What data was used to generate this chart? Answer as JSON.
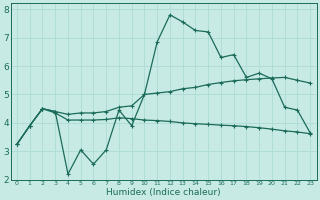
{
  "bg_color": "#c8eae5",
  "line_color": "#1a6b5a",
  "grid_color": "#b0ddd8",
  "xlabel": "Humidex (Indice chaleur)",
  "xlim": [
    -0.5,
    23.5
  ],
  "ylim": [
    2,
    8.2
  ],
  "yticks": [
    2,
    3,
    4,
    5,
    6,
    7,
    8
  ],
  "xticks": [
    0,
    1,
    2,
    3,
    4,
    5,
    6,
    7,
    8,
    9,
    10,
    11,
    12,
    13,
    14,
    15,
    16,
    17,
    18,
    19,
    20,
    21,
    22,
    23
  ],
  "line1_x": [
    0,
    1,
    2,
    3,
    4,
    5,
    6,
    7,
    8,
    9,
    10,
    11,
    12,
    13,
    14,
    15,
    16,
    17,
    18,
    19,
    20,
    21,
    22,
    23
  ],
  "line1_y": [
    3.25,
    3.9,
    4.5,
    4.4,
    2.2,
    3.05,
    2.55,
    3.05,
    4.45,
    3.9,
    5.0,
    6.85,
    7.8,
    7.55,
    7.25,
    7.2,
    6.3,
    6.4,
    5.6,
    5.75,
    5.55,
    4.55,
    4.45,
    3.65
  ],
  "line2_x": [
    0,
    1,
    2,
    3,
    4,
    5,
    6,
    7,
    8,
    9,
    10,
    11,
    12,
    13,
    14,
    15,
    16,
    17,
    18,
    19,
    20,
    21,
    22,
    23
  ],
  "line2_y": [
    3.25,
    3.9,
    4.5,
    4.4,
    4.3,
    4.35,
    4.35,
    4.4,
    4.55,
    4.6,
    5.0,
    5.05,
    5.1,
    5.2,
    5.25,
    5.35,
    5.42,
    5.48,
    5.52,
    5.55,
    5.58,
    5.6,
    5.5,
    5.4
  ],
  "line3_x": [
    0,
    1,
    2,
    3,
    4,
    5,
    6,
    7,
    8,
    9,
    10,
    11,
    12,
    13,
    14,
    15,
    16,
    17,
    18,
    19,
    20,
    21,
    22,
    23
  ],
  "line3_y": [
    3.25,
    3.9,
    4.5,
    4.35,
    4.1,
    4.1,
    4.1,
    4.12,
    4.18,
    4.15,
    4.1,
    4.08,
    4.05,
    4.0,
    3.97,
    3.95,
    3.92,
    3.9,
    3.87,
    3.83,
    3.78,
    3.72,
    3.68,
    3.62
  ]
}
